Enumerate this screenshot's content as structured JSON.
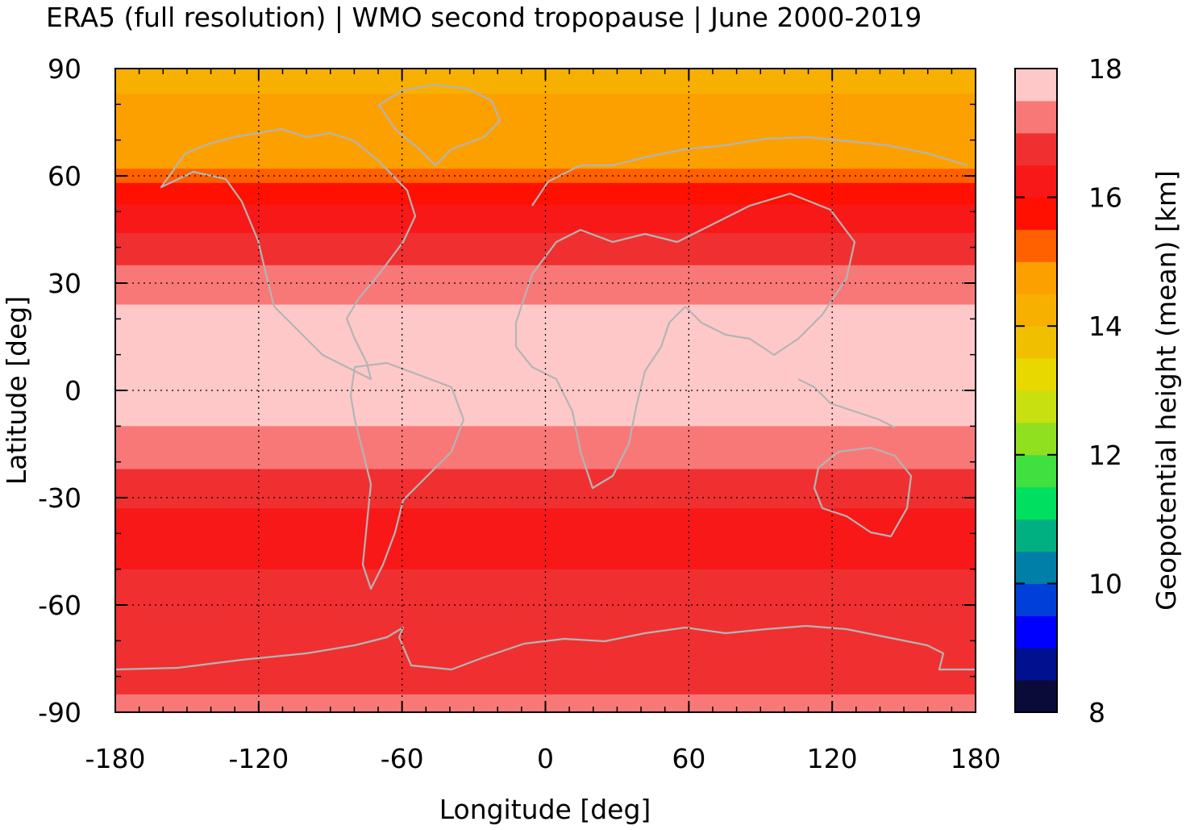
{
  "chart_data": {
    "type": "heatmap",
    "title": "ERA5 (full resolution) | WMO second tropopause | June 2000-2019",
    "xlabel": "Longitude [deg]",
    "ylabel": "Latitude [deg]",
    "xlim": [
      -180,
      180
    ],
    "ylim": [
      -90,
      90
    ],
    "xticks": [
      -180,
      -120,
      -60,
      0,
      60,
      120,
      180
    ],
    "yticks": [
      90,
      60,
      30,
      0,
      -30,
      -60,
      -90
    ],
    "grid": true,
    "colorbar": {
      "label": "Geopotential height (mean) [km]",
      "range": [
        8,
        18
      ],
      "ticks": [
        18,
        16,
        14,
        12,
        10,
        8
      ],
      "levels": [
        8,
        8.5,
        9,
        9.5,
        10,
        10.5,
        11,
        11.5,
        12,
        12.5,
        13,
        13.5,
        14,
        14.5,
        15,
        15.5,
        16,
        16.5,
        17,
        17.5,
        18
      ],
      "colors": [
        "#0b0b3a",
        "#00108e",
        "#0000ff",
        "#0040d8",
        "#0080a8",
        "#00b080",
        "#00e060",
        "#40e040",
        "#90e020",
        "#c8e010",
        "#e8d800",
        "#f0c000",
        "#f8b000",
        "#fca000",
        "#ff6000",
        "#ff1000",
        "#f81818",
        "#f03030",
        "#f87878",
        "#ffc8c8"
      ]
    },
    "coastline_color": "#b4b4b4",
    "zonal_mean_profile": {
      "lat": [
        90,
        80,
        70,
        62,
        55,
        48,
        40,
        32,
        24,
        18,
        10,
        0,
        -8,
        -14,
        -22,
        -30,
        -40,
        -50,
        -60,
        -70,
        -80,
        -90
      ],
      "height_km": [
        14.3,
        14.6,
        14.8,
        15.0,
        15.8,
        16.3,
        16.7,
        17.2,
        17.5,
        17.8,
        17.9,
        17.8,
        17.6,
        17.3,
        17.0,
        16.6,
        16.3,
        16.5,
        16.8,
        16.6,
        16.8,
        17.2
      ]
    }
  }
}
